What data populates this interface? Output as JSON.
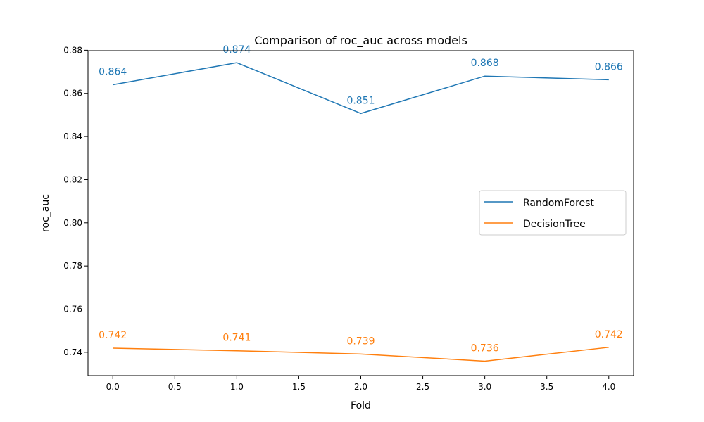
{
  "chart_data": {
    "type": "line",
    "title": "Comparison of roc_auc across models",
    "xlabel": "Fold",
    "ylabel": "roc_auc",
    "x": [
      0,
      1,
      2,
      3,
      4
    ],
    "xticks": [
      0.0,
      0.5,
      1.0,
      1.5,
      2.0,
      2.5,
      3.0,
      3.5,
      4.0
    ],
    "xtick_labels": [
      "0.0",
      "0.5",
      "1.0",
      "1.5",
      "2.0",
      "2.5",
      "3.0",
      "3.5",
      "4.0"
    ],
    "yticks": [
      0.74,
      0.76,
      0.78,
      0.8,
      0.82,
      0.84,
      0.86,
      0.88
    ],
    "ytick_labels": [
      "0.74",
      "0.76",
      "0.78",
      "0.80",
      "0.82",
      "0.84",
      "0.86",
      "0.88"
    ],
    "xlim": [
      -0.2,
      4.2
    ],
    "ylim": [
      0.7292,
      0.8798
    ],
    "grid": false,
    "legend_position": "center-right",
    "series": [
      {
        "name": "RandomForest",
        "color": "#1f77b4",
        "values": [
          0.864,
          0.8742,
          0.8507,
          0.868,
          0.8663
        ],
        "labels": [
          "0.864",
          "0.874",
          "0.851",
          "0.868",
          "0.866"
        ]
      },
      {
        "name": "DecisionTree",
        "color": "#ff7f0e",
        "values": [
          0.7419,
          0.7407,
          0.7392,
          0.7359,
          0.7423
        ],
        "labels": [
          "0.742",
          "0.741",
          "0.739",
          "0.736",
          "0.742"
        ]
      }
    ]
  }
}
